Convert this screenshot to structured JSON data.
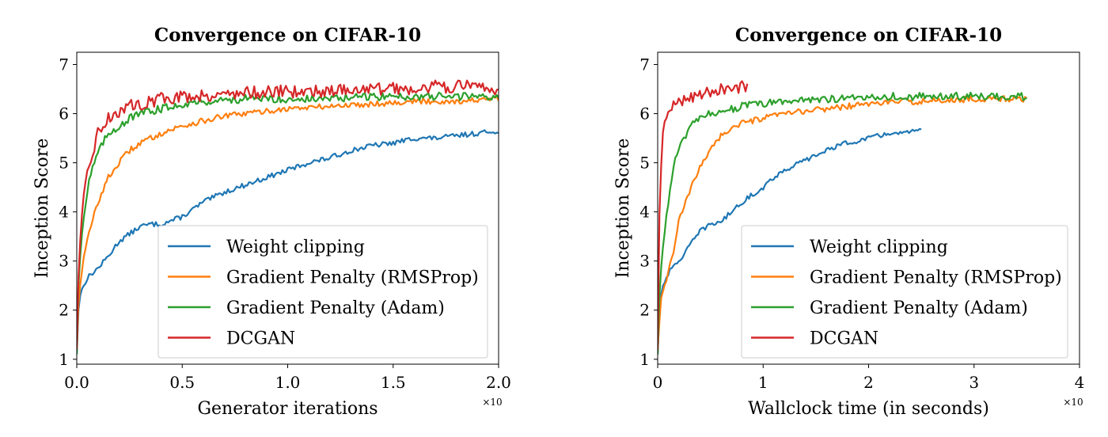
{
  "colors": {
    "weight_clipping": "#1f77b4",
    "gp_rmsprop": "#ff7f0e",
    "gp_adam": "#2ca02c",
    "dcgan": "#d62728"
  },
  "chart_data": [
    {
      "type": "line",
      "title": "Convergence on CIFAR-10",
      "xlabel": "Generator iterations",
      "ylabel": "Inception Score",
      "x_multiplier": "×10",
      "xlim": [
        0,
        2.0
      ],
      "ylim": [
        0.9,
        7.25
      ],
      "xticks": [
        "0.0",
        "0.5",
        "1.0",
        "1.5",
        "2.0"
      ],
      "yticks": [
        "1",
        "2",
        "3",
        "4",
        "5",
        "6",
        "7"
      ],
      "legend_position": "lower-right",
      "series": [
        {
          "name": "Weight clipping",
          "key": "weight_clipping",
          "x_end": 2.0,
          "points": [
            [
              0,
              1.1
            ],
            [
              0.01,
              2.2
            ],
            [
              0.03,
              2.5
            ],
            [
              0.06,
              2.7
            ],
            [
              0.1,
              2.85
            ],
            [
              0.15,
              3.1
            ],
            [
              0.2,
              3.4
            ],
            [
              0.25,
              3.55
            ],
            [
              0.3,
              3.7
            ],
            [
              0.35,
              3.75
            ],
            [
              0.4,
              3.75
            ],
            [
              0.5,
              3.9
            ],
            [
              0.6,
              4.2
            ],
            [
              0.7,
              4.4
            ],
            [
              0.8,
              4.55
            ],
            [
              0.9,
              4.7
            ],
            [
              1.0,
              4.85
            ],
            [
              1.1,
              5.0
            ],
            [
              1.2,
              5.1
            ],
            [
              1.3,
              5.25
            ],
            [
              1.4,
              5.35
            ],
            [
              1.5,
              5.4
            ],
            [
              1.6,
              5.5
            ],
            [
              1.7,
              5.5
            ],
            [
              1.8,
              5.55
            ],
            [
              1.9,
              5.6
            ],
            [
              2.0,
              5.65
            ]
          ]
        },
        {
          "name": "Gradient Penalty (RMSProp)",
          "key": "gp_rmsprop",
          "x_end": 2.0,
          "points": [
            [
              0,
              1.2
            ],
            [
              0.01,
              2.3
            ],
            [
              0.03,
              3.0
            ],
            [
              0.06,
              3.6
            ],
            [
              0.1,
              4.2
            ],
            [
              0.15,
              4.7
            ],
            [
              0.2,
              5.0
            ],
            [
              0.25,
              5.25
            ],
            [
              0.3,
              5.4
            ],
            [
              0.35,
              5.5
            ],
            [
              0.4,
              5.6
            ],
            [
              0.5,
              5.75
            ],
            [
              0.6,
              5.85
            ],
            [
              0.7,
              5.95
            ],
            [
              0.8,
              6.0
            ],
            [
              0.9,
              6.05
            ],
            [
              1.0,
              6.1
            ],
            [
              1.2,
              6.15
            ],
            [
              1.4,
              6.2
            ],
            [
              1.6,
              6.25
            ],
            [
              1.8,
              6.25
            ],
            [
              2.0,
              6.3
            ]
          ]
        },
        {
          "name": "Gradient Penalty (Adam)",
          "key": "gp_adam",
          "x_end": 2.0,
          "points": [
            [
              0,
              1.1
            ],
            [
              0.01,
              2.8
            ],
            [
              0.03,
              3.8
            ],
            [
              0.06,
              4.7
            ],
            [
              0.1,
              5.2
            ],
            [
              0.15,
              5.6
            ],
            [
              0.2,
              5.75
            ],
            [
              0.25,
              5.9
            ],
            [
              0.3,
              6.0
            ],
            [
              0.4,
              6.1
            ],
            [
              0.5,
              6.2
            ],
            [
              0.6,
              6.25
            ],
            [
              0.8,
              6.3
            ],
            [
              1.0,
              6.3
            ],
            [
              1.2,
              6.3
            ],
            [
              1.4,
              6.35
            ],
            [
              1.6,
              6.35
            ],
            [
              1.8,
              6.35
            ],
            [
              2.0,
              6.35
            ]
          ]
        },
        {
          "name": "DCGAN",
          "key": "dcgan",
          "x_end": 2.0,
          "points": [
            [
              0,
              1.2
            ],
            [
              0.01,
              3.0
            ],
            [
              0.03,
              4.2
            ],
            [
              0.06,
              5.0
            ],
            [
              0.1,
              5.6
            ],
            [
              0.15,
              5.9
            ],
            [
              0.2,
              6.05
            ],
            [
              0.25,
              6.15
            ],
            [
              0.3,
              6.2
            ],
            [
              0.4,
              6.3
            ],
            [
              0.5,
              6.35
            ],
            [
              0.7,
              6.4
            ],
            [
              0.9,
              6.45
            ],
            [
              1.1,
              6.45
            ],
            [
              1.3,
              6.5
            ],
            [
              1.5,
              6.5
            ],
            [
              1.7,
              6.55
            ],
            [
              1.9,
              6.55
            ],
            [
              2.0,
              6.5
            ]
          ]
        }
      ]
    },
    {
      "type": "line",
      "title": "Convergence on CIFAR-10",
      "xlabel": "Wallclock time (in seconds)",
      "ylabel": "Inception Score",
      "x_multiplier": "×10",
      "xlim": [
        0,
        4
      ],
      "ylim": [
        0.9,
        7.25
      ],
      "xticks": [
        "0",
        "1",
        "2",
        "3",
        "4"
      ],
      "yticks": [
        "1",
        "2",
        "3",
        "4",
        "5",
        "6",
        "7"
      ],
      "legend_position": "lower-right",
      "series": [
        {
          "name": "Weight clipping",
          "key": "weight_clipping",
          "x_end": 2.5,
          "points": [
            [
              0,
              1.1
            ],
            [
              0.02,
              2.2
            ],
            [
              0.05,
              2.5
            ],
            [
              0.1,
              2.75
            ],
            [
              0.2,
              3.0
            ],
            [
              0.3,
              3.3
            ],
            [
              0.4,
              3.6
            ],
            [
              0.5,
              3.75
            ],
            [
              0.6,
              3.8
            ],
            [
              0.7,
              4.0
            ],
            [
              0.8,
              4.2
            ],
            [
              0.9,
              4.35
            ],
            [
              1.0,
              4.5
            ],
            [
              1.1,
              4.7
            ],
            [
              1.2,
              4.85
            ],
            [
              1.3,
              4.95
            ],
            [
              1.4,
              5.05
            ],
            [
              1.5,
              5.15
            ],
            [
              1.6,
              5.25
            ],
            [
              1.7,
              5.35
            ],
            [
              1.8,
              5.4
            ],
            [
              1.9,
              5.45
            ],
            [
              2.0,
              5.5
            ],
            [
              2.1,
              5.55
            ],
            [
              2.2,
              5.6
            ],
            [
              2.3,
              5.6
            ],
            [
              2.4,
              5.62
            ],
            [
              2.5,
              5.65
            ]
          ]
        },
        {
          "name": "Gradient Penalty (RMSProp)",
          "key": "gp_rmsprop",
          "x_end": 3.5,
          "points": [
            [
              0,
              1.2
            ],
            [
              0.03,
              2.2
            ],
            [
              0.08,
              2.6
            ],
            [
              0.15,
              3.2
            ],
            [
              0.2,
              3.8
            ],
            [
              0.3,
              4.4
            ],
            [
              0.4,
              4.9
            ],
            [
              0.5,
              5.3
            ],
            [
              0.6,
              5.55
            ],
            [
              0.7,
              5.7
            ],
            [
              0.8,
              5.8
            ],
            [
              0.9,
              5.85
            ],
            [
              1.0,
              5.9
            ],
            [
              1.2,
              6.0
            ],
            [
              1.4,
              6.05
            ],
            [
              1.6,
              6.1
            ],
            [
              1.8,
              6.15
            ],
            [
              2.0,
              6.2
            ],
            [
              2.3,
              6.25
            ],
            [
              2.6,
              6.25
            ],
            [
              3.0,
              6.3
            ],
            [
              3.3,
              6.3
            ],
            [
              3.5,
              6.3
            ]
          ]
        },
        {
          "name": "Gradient Penalty (Adam)",
          "key": "gp_adam",
          "x_end": 3.5,
          "points": [
            [
              0,
              1.1
            ],
            [
              0.02,
              2.5
            ],
            [
              0.05,
              3.3
            ],
            [
              0.1,
              4.2
            ],
            [
              0.15,
              4.9
            ],
            [
              0.2,
              5.3
            ],
            [
              0.3,
              5.7
            ],
            [
              0.4,
              5.9
            ],
            [
              0.5,
              6.0
            ],
            [
              0.6,
              6.05
            ],
            [
              0.8,
              6.15
            ],
            [
              1.0,
              6.2
            ],
            [
              1.2,
              6.25
            ],
            [
              1.5,
              6.3
            ],
            [
              1.8,
              6.3
            ],
            [
              2.0,
              6.35
            ],
            [
              2.5,
              6.35
            ],
            [
              3.0,
              6.35
            ],
            [
              3.5,
              6.35
            ]
          ]
        },
        {
          "name": "DCGAN",
          "key": "dcgan",
          "x_end": 0.85,
          "points": [
            [
              0,
              1.2
            ],
            [
              0.01,
              3.5
            ],
            [
              0.03,
              4.8
            ],
            [
              0.05,
              5.6
            ],
            [
              0.08,
              5.9
            ],
            [
              0.12,
              6.1
            ],
            [
              0.2,
              6.25
            ],
            [
              0.3,
              6.35
            ],
            [
              0.4,
              6.4
            ],
            [
              0.5,
              6.45
            ],
            [
              0.6,
              6.5
            ],
            [
              0.7,
              6.55
            ],
            [
              0.8,
              6.55
            ],
            [
              0.85,
              6.5
            ]
          ]
        }
      ]
    }
  ]
}
